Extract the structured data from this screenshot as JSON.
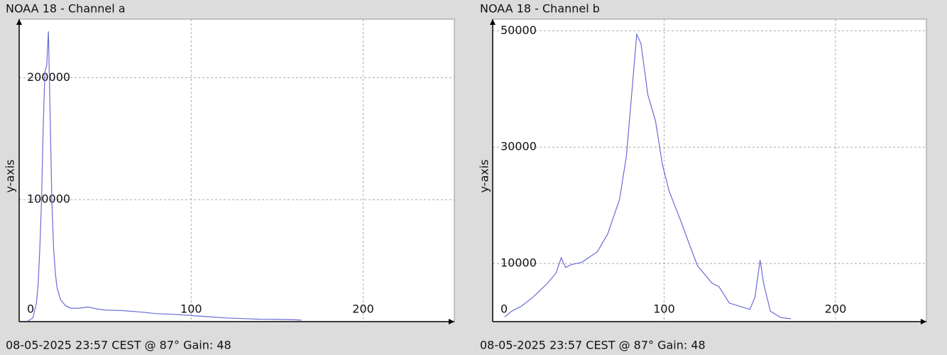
{
  "chart_data": [
    {
      "type": "line",
      "title": "NOAA 18 - Channel a",
      "caption": "08-05-2025 23:57 CEST @ 87° Gain: 48",
      "y_label": "y-axis",
      "x": [
        5,
        8,
        10,
        11,
        12,
        13,
        14,
        15,
        16,
        17,
        18,
        19,
        20,
        21,
        22,
        24,
        27,
        30,
        35,
        40,
        45,
        50,
        60,
        70,
        80,
        90,
        100,
        110,
        120,
        130,
        140,
        150,
        160,
        164
      ],
      "values": [
        500,
        3000,
        15000,
        30000,
        60000,
        100000,
        160000,
        205000,
        210000,
        238000,
        170000,
        100000,
        60000,
        40000,
        28000,
        18000,
        13000,
        11000,
        11000,
        12000,
        10500,
        9500,
        9000,
        8000,
        6500,
        6000,
        5000,
        4000,
        3000,
        2500,
        2000,
        1800,
        1500,
        1200
      ],
      "color": "#6b6bd6",
      "xlim": [
        0,
        253
      ],
      "ylim": [
        0,
        248000
      ],
      "xticks": [
        100,
        200
      ],
      "yticks": [
        0,
        100000,
        200000
      ],
      "grid": true
    },
    {
      "type": "line",
      "title": "NOAA 18 - Channel b",
      "caption": "08-05-2025 23:57 CEST @ 87° Gain: 48",
      "y_label": "y-axis",
      "x": [
        7,
        11,
        17,
        23.5,
        32,
        37,
        40,
        42.5,
        46,
        52,
        61,
        67,
        74,
        78,
        81.5,
        84,
        86.5,
        90.5,
        95,
        99,
        103,
        109.5,
        115.5,
        119.5,
        128,
        132,
        138,
        144.5,
        150,
        153,
        156,
        158,
        162,
        168,
        174
      ],
      "values": [
        800,
        1800,
        2700,
        4200,
        6600,
        8400,
        11000,
        9300,
        9800,
        10200,
        12000,
        15000,
        21000,
        28500,
        40500,
        49400,
        47800,
        39000,
        34500,
        27000,
        22400,
        17500,
        12700,
        9600,
        6600,
        6000,
        3200,
        2600,
        2100,
        4200,
        10600,
        6600,
        1800,
        700,
        500
      ],
      "color": "#6b6bd6",
      "xlim": [
        0,
        253
      ],
      "ylim": [
        0,
        52000
      ],
      "xticks": [
        100,
        200
      ],
      "yticks": [
        0,
        10000,
        30000,
        50000
      ],
      "grid": true
    }
  ]
}
